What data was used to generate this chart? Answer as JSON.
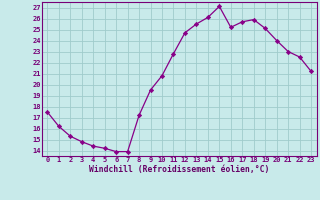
{
  "x": [
    0,
    1,
    2,
    3,
    4,
    5,
    6,
    7,
    8,
    9,
    10,
    11,
    12,
    13,
    14,
    15,
    16,
    17,
    18,
    19,
    20,
    21,
    22,
    23
  ],
  "y": [
    17.5,
    16.2,
    15.3,
    14.8,
    14.4,
    14.2,
    13.9,
    13.9,
    17.2,
    19.5,
    20.8,
    22.8,
    24.7,
    25.5,
    26.1,
    27.1,
    25.2,
    25.7,
    25.9,
    25.1,
    24.0,
    23.0,
    22.5,
    21.2
  ],
  "line_color": "#880088",
  "marker": "D",
  "marker_size": 2.2,
  "bg_color": "#c8eaea",
  "grid_color": "#a0cccc",
  "xlabel": "Windchill (Refroidissement éolien,°C)",
  "xlabel_color": "#660066",
  "tick_color": "#770077",
  "ylim": [
    13.5,
    27.5
  ],
  "xlim": [
    -0.5,
    23.5
  ],
  "yticks": [
    14,
    15,
    16,
    17,
    18,
    19,
    20,
    21,
    22,
    23,
    24,
    25,
    26,
    27
  ],
  "xticks": [
    0,
    1,
    2,
    3,
    4,
    5,
    6,
    7,
    8,
    9,
    10,
    11,
    12,
    13,
    14,
    15,
    16,
    17,
    18,
    19,
    20,
    21,
    22,
    23
  ]
}
